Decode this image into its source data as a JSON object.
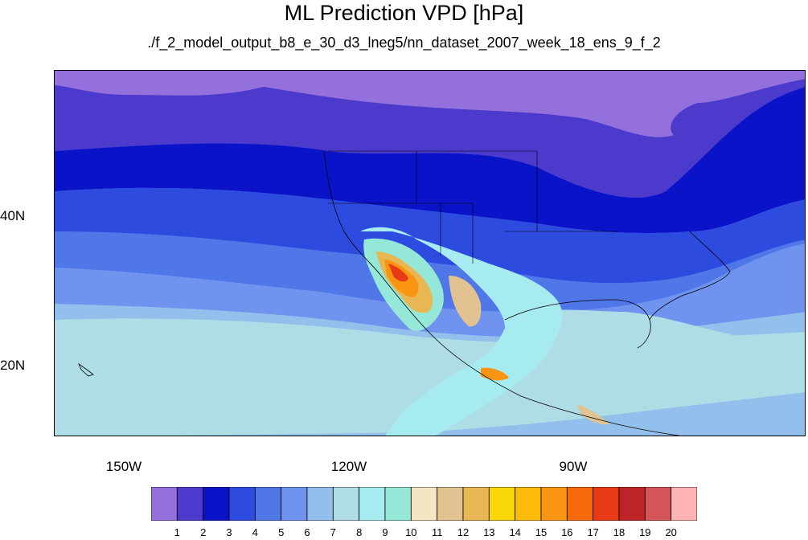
{
  "title": "ML Prediction VPD [hPa]",
  "subtitle": "./f_2_model_output_b8_e_30_d3_lneg5/nn_dataset_2007_week_18_ens_9_f_2",
  "map": {
    "lon_ticks": [
      "150W",
      "120W",
      "90W"
    ],
    "lat_ticks": [
      "40N",
      "20N"
    ]
  },
  "colorbar": {
    "labels": [
      "1",
      "2",
      "3",
      "4",
      "5",
      "6",
      "7",
      "8",
      "9",
      "10",
      "11",
      "12",
      "13",
      "14",
      "15",
      "16",
      "17",
      "18",
      "19",
      "20"
    ],
    "colors": [
      "#9370db",
      "#4b3acb",
      "#0b13c8",
      "#2e4be0",
      "#4f77e8",
      "#7093ef",
      "#92bfeb",
      "#aedde6",
      "#a6ebef",
      "#95e8d8",
      "#f3e6c3",
      "#e2c291",
      "#e8b652",
      "#fad808",
      "#fbbb08",
      "#f99513",
      "#f6690b",
      "#e93a18",
      "#be2427",
      "#d45557",
      "#feb3b3"
    ]
  }
}
